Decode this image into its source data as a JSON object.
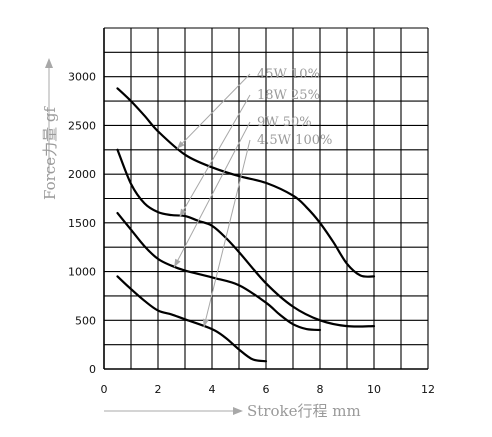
{
  "chart_data": {
    "type": "line",
    "xlabel": "Stroke行程  mm",
    "ylabel": "Force力量  gf",
    "xlim": [
      0,
      12
    ],
    "ylim": [
      0,
      3500
    ],
    "x_ticks": [
      "0",
      "2",
      "4",
      "6",
      "8",
      "10",
      "12"
    ],
    "y_ticks": [
      "0",
      "500",
      "1000",
      "1500",
      "2000",
      "2500",
      "3000"
    ],
    "grid": true,
    "series": [
      {
        "name": "45W 10%",
        "x": [
          0.5,
          1,
          1.5,
          2,
          3,
          4,
          5,
          6,
          7,
          7.5,
          8,
          8.5,
          9,
          9.5,
          10
        ],
        "y": [
          2880,
          2750,
          2600,
          2440,
          2200,
          2070,
          1980,
          1910,
          1780,
          1660,
          1500,
          1300,
          1080,
          960,
          950
        ]
      },
      {
        "name": "18W 25%",
        "x": [
          0.5,
          1,
          1.5,
          2,
          2.5,
          3,
          3.5,
          4,
          4.5,
          5,
          6,
          7,
          8,
          9,
          10
        ],
        "y": [
          2250,
          1900,
          1700,
          1610,
          1580,
          1570,
          1520,
          1470,
          1350,
          1200,
          880,
          640,
          500,
          440,
          440
        ]
      },
      {
        "name": "9W 50%",
        "x": [
          0.5,
          1,
          1.5,
          2,
          2.5,
          3,
          4,
          5,
          6,
          6.5,
          7,
          7.5,
          8
        ],
        "y": [
          1600,
          1430,
          1260,
          1130,
          1060,
          1010,
          940,
          860,
          680,
          560,
          460,
          410,
          400
        ]
      },
      {
        "name": "4.5W 100%",
        "x": [
          0.5,
          1,
          1.5,
          2,
          2.5,
          3,
          4,
          4.5,
          5,
          5.5,
          6
        ],
        "y": [
          950,
          820,
          700,
          600,
          560,
          510,
          410,
          320,
          200,
          100,
          80
        ]
      }
    ],
    "legend_placement": "top-right (with arrows pointing to each curve)"
  },
  "colors": {
    "curve": "#000000",
    "grid": "#000000",
    "annotation": "#a8a8a8"
  }
}
